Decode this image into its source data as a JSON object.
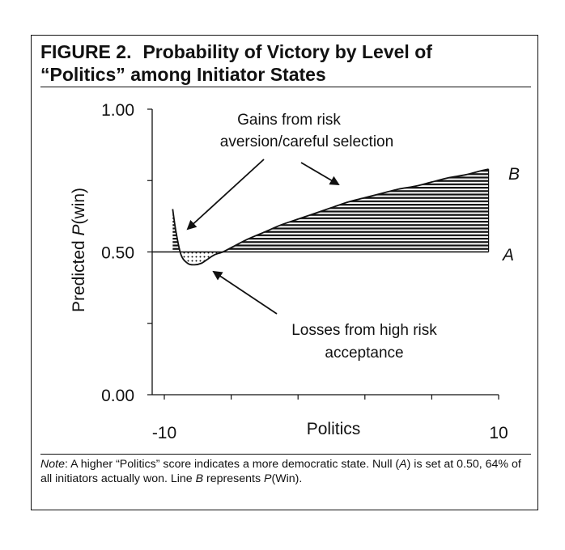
{
  "figure": {
    "number": "FIGURE 2.",
    "title_line1": "Probability of Victory by Level of",
    "title_line2": "“Politics” among Initiator States"
  },
  "note": {
    "lead": "Note",
    "part1": ": A higher “Politics” score indicates a more democratic state. Null (",
    "a": "A",
    "part2": ") is set at 0.50, 64% of all initiators actually won. Line ",
    "b": "B",
    "part3": " represents ",
    "p": "P",
    "part4": "(Win)."
  },
  "chart_data": {
    "type": "line",
    "xlabel": "Politics",
    "ylabel_prefix": "Predicted ",
    "ylabel_italic": "P",
    "ylabel_suffix": "(win)",
    "xlim": [
      -10,
      10
    ],
    "ylim": [
      0,
      1
    ],
    "x_tick_labels": [
      {
        "value": -10,
        "label": "-10"
      },
      {
        "value": 10,
        "label": "10"
      }
    ],
    "y_tick_labels": [
      {
        "value": 0,
        "label": "0.00"
      },
      {
        "value": 0.5,
        "label": "0.50"
      },
      {
        "value": 1,
        "label": "1.00"
      }
    ],
    "x_minor_ticks": [
      -6,
      -2,
      2,
      6
    ],
    "y_minor_ticks": [
      0.25,
      0.75
    ],
    "null_value": 0.5,
    "series": [
      {
        "name": "B",
        "x": [
          -9.5,
          -9.3,
          -9.0,
          -8.6,
          -8.2,
          -7.8,
          -7.4,
          -7.0,
          -6.5,
          -6.0,
          -5.0,
          -4.0,
          -3.0,
          -2.0,
          -1.0,
          0.0,
          1.0,
          2.0,
          3.0,
          4.0,
          5.0,
          6.0,
          7.0,
          8.0,
          9.0,
          9.4
        ],
        "y": [
          0.65,
          0.57,
          0.49,
          0.46,
          0.455,
          0.46,
          0.475,
          0.49,
          0.5,
          0.515,
          0.545,
          0.57,
          0.595,
          0.615,
          0.635,
          0.655,
          0.675,
          0.69,
          0.705,
          0.72,
          0.73,
          0.745,
          0.76,
          0.77,
          0.785,
          0.79
        ]
      },
      {
        "name": "A",
        "x": [
          -10,
          9.4
        ],
        "y": [
          0.5,
          0.5
        ]
      }
    ],
    "annotations": {
      "gains_line1": "Gains from risk",
      "gains_line2": "aversion/careful selection",
      "losses_line1": "Losses from high risk",
      "losses_line2": "acceptance"
    }
  }
}
